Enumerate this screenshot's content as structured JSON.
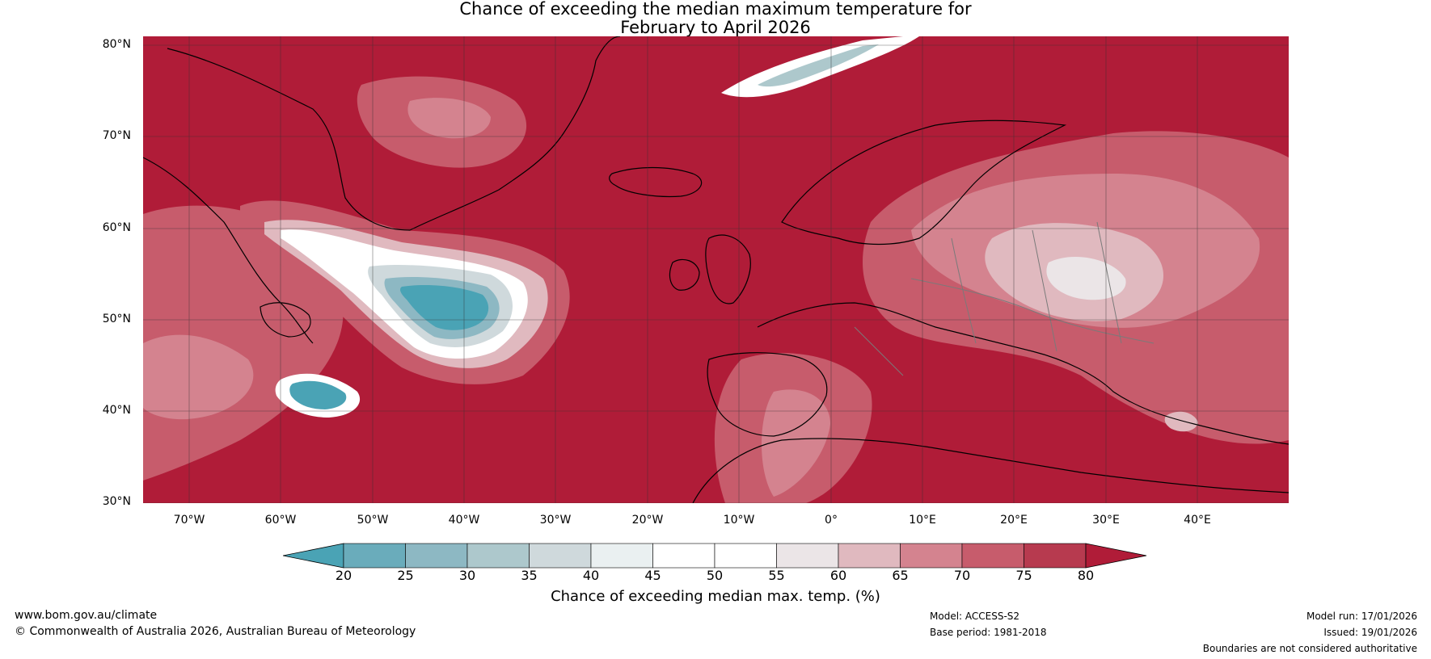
{
  "title": {
    "line1": "Chance of exceeding the median maximum temperature for",
    "line2": "February to April 2026"
  },
  "map": {
    "lat_labels": [
      "80°N",
      "70°N",
      "60°N",
      "50°N",
      "40°N",
      "30°N"
    ],
    "lon_labels": [
      "70°W",
      "60°W",
      "50°W",
      "40°W",
      "30°W",
      "20°W",
      "10°W",
      "0°",
      "10°E",
      "20°E",
      "30°E",
      "40°E"
    ],
    "extent": {
      "lon": [
        -75,
        50
      ],
      "lat": [
        30,
        80
      ]
    },
    "base_color": "#b01c38"
  },
  "colorbar": {
    "ticks": [
      "20",
      "25",
      "30",
      "35",
      "40",
      "45",
      "50",
      "55",
      "60",
      "65",
      "70",
      "75",
      "80"
    ],
    "colors": [
      "#4aa3b5",
      "#6aacbb",
      "#8db8c3",
      "#adc8cc",
      "#cfd9dc",
      "#eaf0f1",
      "#ffffff",
      "#ffffff",
      "#ebe5e7",
      "#e0b9bf",
      "#d4838f",
      "#c75c6c",
      "#b73a4f",
      "#b01c38"
    ],
    "label": "Chance of exceeding median max. temp. (%)"
  },
  "footer": {
    "url": "www.bom.gov.au/climate",
    "copyright": "© Commonwealth of Australia 2026, Australian Bureau of Meteorology",
    "model": "Model: ACCESS-S2",
    "base_period": "Base period: 1981-2018",
    "model_run": "Model run: 17/01/2026",
    "issued": "Issued: 19/01/2026",
    "disclaimer": "Boundaries are not considered authoritative"
  }
}
